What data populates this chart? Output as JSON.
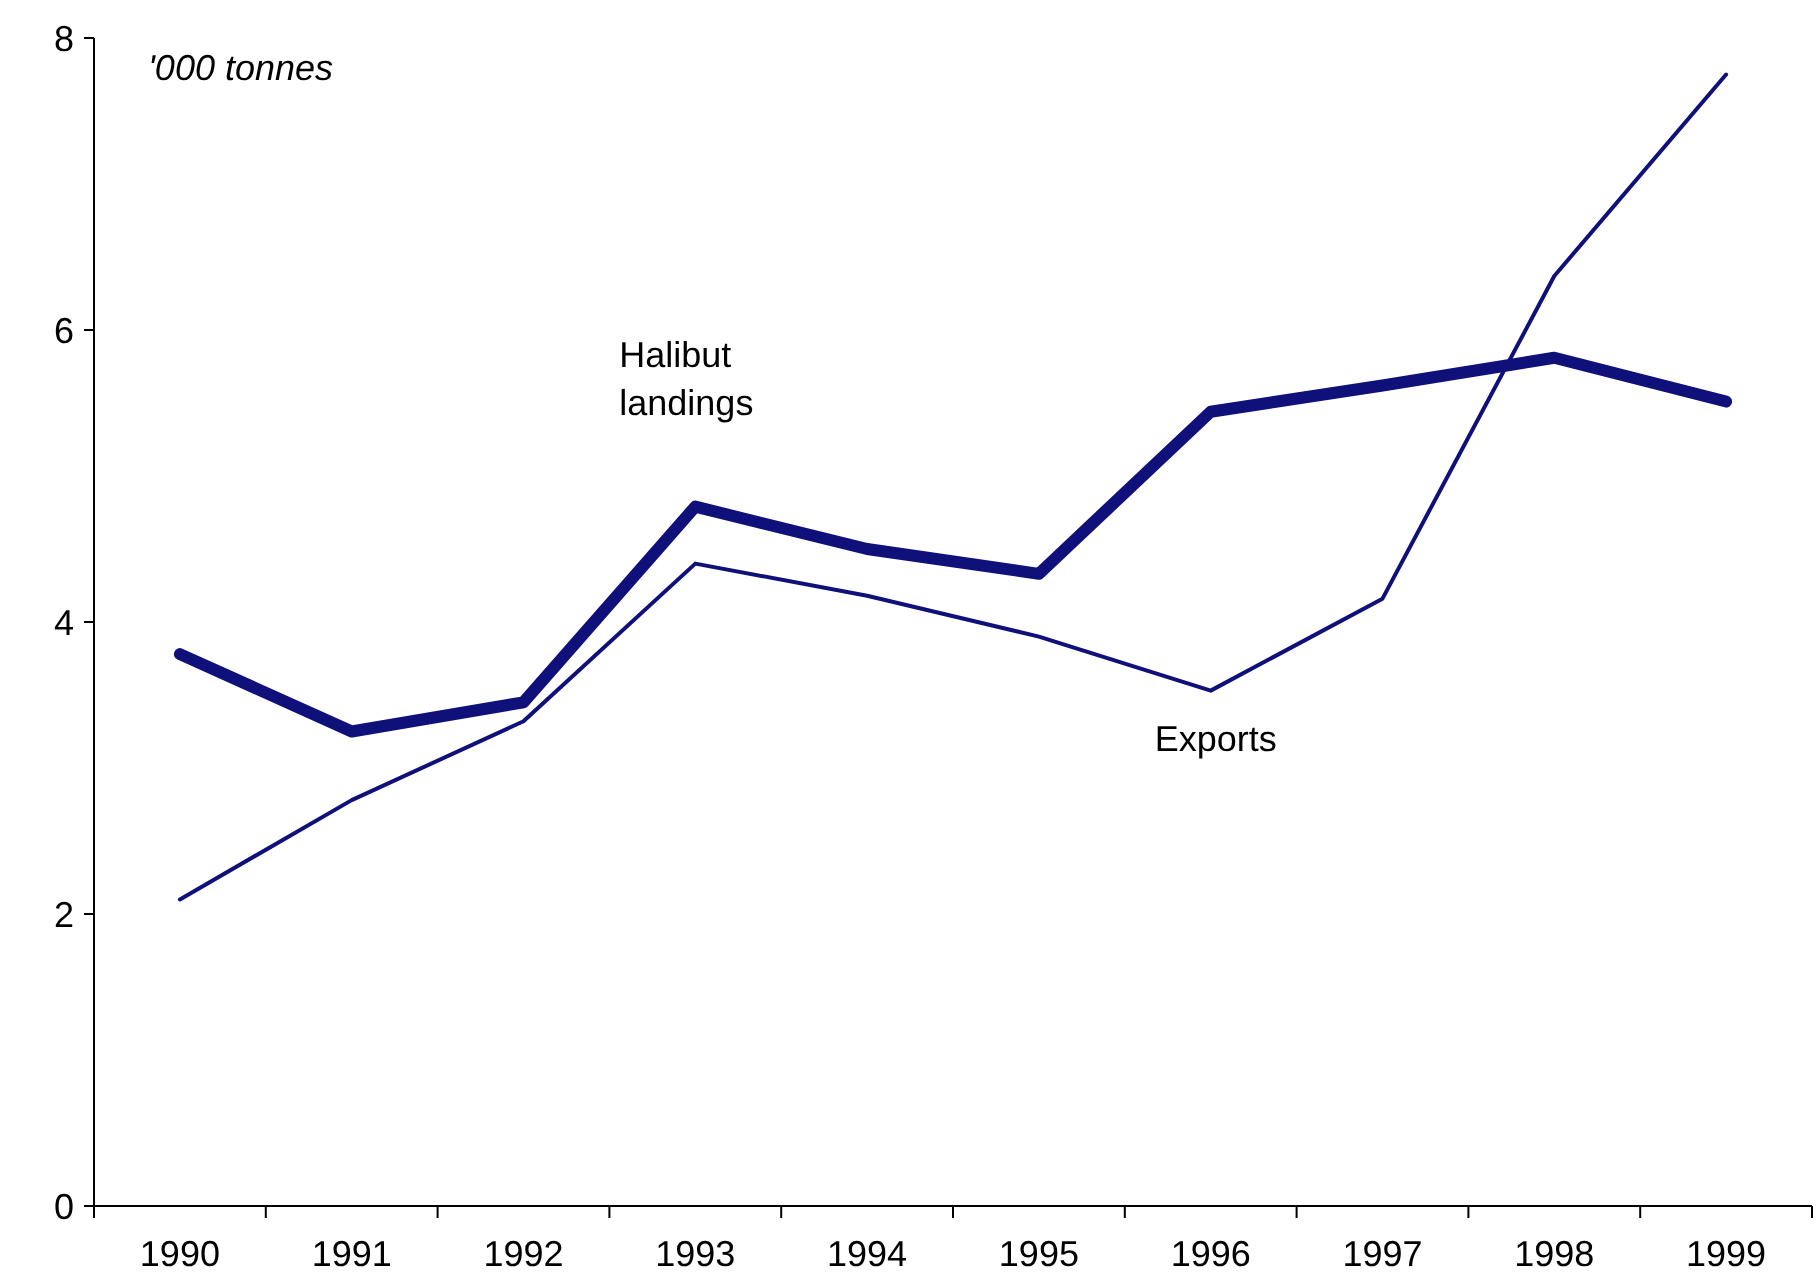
{
  "chart_data": {
    "type": "line",
    "categories": [
      "1990",
      "1991",
      "1992",
      "1993",
      "1994",
      "1995",
      "1996",
      "1997",
      "1998",
      "1999"
    ],
    "series": [
      {
        "name": "Halibut landings",
        "color": "#10107a",
        "values": [
          3.78,
          3.25,
          3.45,
          4.79,
          4.5,
          4.33,
          5.44,
          5.62,
          5.81,
          5.51
        ]
      },
      {
        "name": "Exports",
        "color": "#10107a",
        "values": [
          2.1,
          2.78,
          3.32,
          4.4,
          4.18,
          3.9,
          3.53,
          4.16,
          6.37,
          7.75
        ]
      }
    ],
    "ylim": [
      0,
      8
    ],
    "yticks": [
      0,
      2,
      4,
      6,
      8
    ],
    "grid": false,
    "marker": "none",
    "line_style": "solid",
    "annotations": [
      "'000 tonnes"
    ]
  }
}
